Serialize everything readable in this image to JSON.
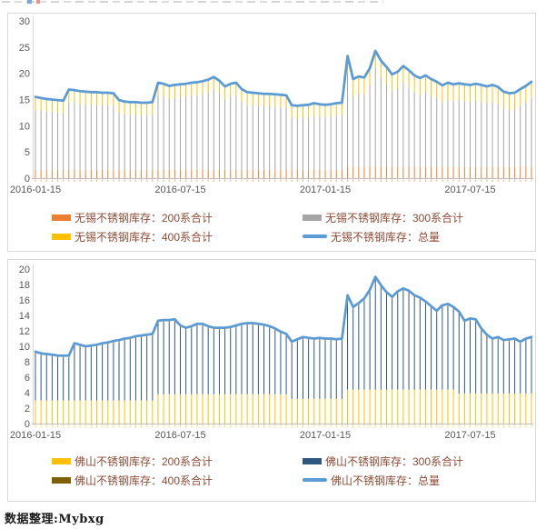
{
  "page": {
    "source_note": "数据整理:Mybxg"
  },
  "chart_data": [
    {
      "type": "combo-stacked-bar-line",
      "title": "",
      "region": "无锡",
      "ylim": [
        0,
        30
      ],
      "y_ticks": [
        0,
        5,
        10,
        15,
        20,
        25,
        30
      ],
      "x_ticks": [
        "2016-01-15",
        "2016-07-15",
        "2017-01-15",
        "2017-07-15"
      ],
      "x_tick_indices": [
        0,
        26,
        52,
        78
      ],
      "n_points": 90,
      "grid": false,
      "legend_position": "bottom",
      "colors": {
        "s200": "#ED7D31",
        "s300": "#A6A6A6",
        "s400": "#FFC000",
        "total": "#5B9BD5",
        "stub": "#F4B183",
        "axis": "#BFBFBF",
        "tick_text": "#595959"
      },
      "legend": [
        {
          "label": "无锡不锈钢库存：200系合计",
          "swatch": "bar",
          "color": "#ED7D31"
        },
        {
          "label": "无锡不锈钢库存：300系合计",
          "swatch": "bar",
          "color": "#A6A6A6"
        },
        {
          "label": "无锡不锈钢库存：400系合计",
          "swatch": "bar",
          "color": "#FFC000"
        },
        {
          "label": "无锡不锈钢库存：总量",
          "swatch": "line",
          "color": "#5B9BD5"
        }
      ],
      "series": {
        "s200": [
          1.6,
          1.6,
          1.6,
          1.6,
          1.6,
          1.6,
          1.6,
          1.6,
          1.6,
          1.6,
          1.6,
          1.6,
          1.6,
          1.6,
          1.6,
          1.6,
          1.6,
          1.6,
          1.6,
          1.6,
          1.6,
          1.6,
          1.6,
          1.6,
          1.6,
          1.6,
          1.6,
          1.6,
          1.6,
          1.6,
          1.6,
          1.6,
          1.6,
          1.6,
          1.6,
          1.6,
          1.6,
          1.6,
          1.6,
          1.6,
          1.6,
          1.6,
          1.6,
          1.6,
          1.6,
          1.6,
          1.6,
          1.6,
          1.6,
          1.6,
          1.6,
          1.6,
          1.6,
          1.6,
          1.6,
          1.6,
          2.2,
          2.2,
          2.2,
          2.2,
          2.2,
          2.2,
          2.2,
          2.2,
          2.2,
          2.2,
          2.2,
          2.2,
          2.2,
          2.2,
          2.2,
          2.2,
          2.2,
          2.2,
          2.2,
          2.2,
          2.2,
          2.2,
          2.2,
          2.2,
          2.2,
          2.2,
          2.2,
          2.2,
          2.2,
          2.2,
          2.2,
          2.2,
          2.2,
          2.2
        ],
        "s300": [
          11.5,
          11.3,
          11.1,
          11.0,
          10.9,
          10.8,
          12.9,
          12.8,
          12.6,
          12.5,
          12.4,
          12.4,
          12.3,
          12.3,
          12.2,
          10.9,
          10.6,
          10.5,
          10.5,
          10.4,
          10.4,
          10.5,
          14.2,
          14.0,
          13.6,
          13.8,
          13.9,
          14.0,
          14.2,
          14.3,
          14.5,
          14.8,
          15.3,
          14.6,
          13.5,
          14.0,
          14.2,
          13.0,
          12.4,
          12.3,
          12.2,
          12.1,
          12.1,
          12.0,
          11.9,
          11.8,
          9.9,
          9.8,
          9.9,
          10.0,
          10.3,
          10.1,
          10.0,
          10.1,
          10.3,
          10.4,
          17.9,
          13.5,
          14.0,
          13.8,
          15.6,
          18.9,
          17.0,
          15.8,
          14.4,
          14.9,
          16.0,
          15.2,
          14.2,
          13.7,
          14.2,
          13.5,
          13.0,
          12.3,
          12.8,
          12.5,
          12.7,
          12.5,
          12.4,
          12.6,
          12.4,
          12.1,
          12.4,
          12.0,
          11.1,
          10.8,
          10.9,
          11.6,
          12.2,
          13.0
        ],
        "s400": [
          2.4,
          2.4,
          2.4,
          2.4,
          2.4,
          2.4,
          2.4,
          2.4,
          2.4,
          2.4,
          2.4,
          2.4,
          2.4,
          2.4,
          2.4,
          2.4,
          2.4,
          2.4,
          2.4,
          2.4,
          2.4,
          2.4,
          2.4,
          2.4,
          2.4,
          2.4,
          2.4,
          2.4,
          2.4,
          2.4,
          2.4,
          2.4,
          2.4,
          2.4,
          2.4,
          2.4,
          2.4,
          2.4,
          2.4,
          2.4,
          2.4,
          2.4,
          2.4,
          2.4,
          2.4,
          2.4,
          2.4,
          2.4,
          2.4,
          2.4,
          2.4,
          2.4,
          2.4,
          2.4,
          2.4,
          2.4,
          3.2,
          3.2,
          3.2,
          3.2,
          3.2,
          3.2,
          3.2,
          3.2,
          3.2,
          3.2,
          3.2,
          3.2,
          3.2,
          3.2,
          3.2,
          3.2,
          3.2,
          3.2,
          3.2,
          3.2,
          3.2,
          3.2,
          3.2,
          3.2,
          3.2,
          3.2,
          3.2,
          3.2,
          3.2,
          3.2,
          3.2,
          3.2,
          3.2,
          3.2
        ],
        "total": [
          15.5,
          15.3,
          15.1,
          15.0,
          14.9,
          14.8,
          16.9,
          16.8,
          16.6,
          16.5,
          16.4,
          16.4,
          16.3,
          16.3,
          16.2,
          14.9,
          14.6,
          14.5,
          14.5,
          14.4,
          14.4,
          14.5,
          18.2,
          18.0,
          17.6,
          17.8,
          17.9,
          18.0,
          18.2,
          18.3,
          18.5,
          18.8,
          19.3,
          18.6,
          17.5,
          18.0,
          18.2,
          17.0,
          16.4,
          16.3,
          16.2,
          16.1,
          16.1,
          16.0,
          15.9,
          15.8,
          13.9,
          13.8,
          13.9,
          14.0,
          14.3,
          14.1,
          14.0,
          14.1,
          14.3,
          14.4,
          23.3,
          18.9,
          19.4,
          19.2,
          21.0,
          24.3,
          22.4,
          21.2,
          19.8,
          20.3,
          21.4,
          20.6,
          19.6,
          19.1,
          19.6,
          18.9,
          18.4,
          17.7,
          18.2,
          17.9,
          18.1,
          17.9,
          17.8,
          18.0,
          17.8,
          17.5,
          17.8,
          17.4,
          16.5,
          16.2,
          16.3,
          17.0,
          17.6,
          18.4
        ]
      }
    },
    {
      "type": "combo-stacked-bar-line",
      "title": "",
      "region": "佛山",
      "ylim": [
        0,
        20
      ],
      "y_ticks": [
        0,
        2,
        4,
        6,
        8,
        10,
        12,
        14,
        16,
        18,
        20
      ],
      "x_ticks": [
        "2016-01-15",
        "2016-07-15",
        "2017-01-15",
        "2017-07-15"
      ],
      "x_tick_indices": [
        0,
        26,
        52,
        78
      ],
      "n_points": 90,
      "grid": false,
      "legend_position": "bottom",
      "colors": {
        "s200": "#FFC000",
        "s300": "#2E5881",
        "s400": "#7F6000",
        "total": "#5B9BD5",
        "stub": "#FFD966",
        "axis": "#BFBFBF",
        "tick_text": "#595959"
      },
      "legend": [
        {
          "label": "佛山不锈钢库存：200系合计",
          "swatch": "bar",
          "color": "#FFC000"
        },
        {
          "label": "佛山不锈钢库存：300系合计",
          "swatch": "bar",
          "color": "#2E5881"
        },
        {
          "label": "佛山不锈钢库存：400系合计",
          "swatch": "bar",
          "color": "#7F6000"
        },
        {
          "label": "佛山不锈钢库存：总量",
          "swatch": "line",
          "color": "#5B9BD5"
        }
      ],
      "series": {
        "s200": [
          3.0,
          3.0,
          3.0,
          3.0,
          3.0,
          3.0,
          3.0,
          3.0,
          3.0,
          3.0,
          3.0,
          3.0,
          3.0,
          3.0,
          3.0,
          3.0,
          3.0,
          3.0,
          3.0,
          3.0,
          3.0,
          3.0,
          3.8,
          3.8,
          3.8,
          3.8,
          3.8,
          3.8,
          3.8,
          3.8,
          3.8,
          3.8,
          3.8,
          3.8,
          3.8,
          3.8,
          3.8,
          3.8,
          3.8,
          3.8,
          3.8,
          3.8,
          3.8,
          3.8,
          3.8,
          3.8,
          3.2,
          3.2,
          3.2,
          3.2,
          3.2,
          3.2,
          3.2,
          3.2,
          3.2,
          3.2,
          4.4,
          4.4,
          4.4,
          4.4,
          4.4,
          4.4,
          4.4,
          4.4,
          4.4,
          4.4,
          4.4,
          4.4,
          4.4,
          4.4,
          4.4,
          4.4,
          4.4,
          4.4,
          4.4,
          4.4,
          3.9,
          3.9,
          3.9,
          3.9,
          3.9,
          3.9,
          3.9,
          3.9,
          3.9,
          3.9,
          3.9,
          3.9,
          3.9,
          3.9
        ],
        "s300": [
          6.0,
          5.8,
          5.7,
          5.6,
          5.5,
          5.5,
          5.5,
          7.1,
          6.9,
          6.7,
          6.8,
          6.9,
          7.1,
          7.2,
          7.4,
          7.5,
          7.7,
          7.8,
          8.0,
          8.1,
          8.2,
          8.3,
          9.2,
          9.3,
          9.3,
          9.4,
          8.6,
          8.3,
          8.5,
          8.8,
          8.8,
          8.5,
          8.3,
          8.3,
          8.3,
          8.4,
          8.6,
          8.8,
          8.9,
          8.9,
          8.8,
          8.7,
          8.5,
          8.2,
          7.8,
          7.5,
          7.1,
          7.4,
          7.7,
          7.6,
          7.5,
          7.6,
          7.5,
          7.5,
          7.4,
          7.5,
          11.9,
          10.4,
          10.9,
          11.5,
          12.6,
          14.3,
          13.2,
          12.3,
          11.7,
          12.4,
          12.8,
          12.5,
          11.9,
          11.6,
          11.1,
          10.5,
          9.9,
          10.6,
          10.8,
          10.4,
          10.3,
          9.1,
          9.4,
          9.3,
          8.1,
          7.3,
          6.8,
          7.0,
          6.6,
          6.7,
          6.8,
          6.4,
          6.8,
          7.0
        ],
        "s400": [
          0.3,
          0.3,
          0.3,
          0.3,
          0.3,
          0.3,
          0.3,
          0.3,
          0.3,
          0.3,
          0.3,
          0.3,
          0.3,
          0.3,
          0.3,
          0.3,
          0.3,
          0.3,
          0.3,
          0.3,
          0.3,
          0.3,
          0.3,
          0.3,
          0.3,
          0.3,
          0.3,
          0.3,
          0.3,
          0.3,
          0.3,
          0.3,
          0.3,
          0.3,
          0.3,
          0.3,
          0.3,
          0.3,
          0.3,
          0.3,
          0.3,
          0.3,
          0.3,
          0.3,
          0.3,
          0.3,
          0.3,
          0.3,
          0.3,
          0.3,
          0.3,
          0.3,
          0.3,
          0.3,
          0.3,
          0.3,
          0.3,
          0.3,
          0.3,
          0.3,
          0.3,
          0.3,
          0.3,
          0.3,
          0.3,
          0.3,
          0.3,
          0.3,
          0.3,
          0.3,
          0.3,
          0.3,
          0.3,
          0.3,
          0.3,
          0.3,
          0.3,
          0.3,
          0.3,
          0.3,
          0.3,
          0.3,
          0.3,
          0.3,
          0.3,
          0.3,
          0.3,
          0.3,
          0.3,
          0.3
        ],
        "total": [
          9.3,
          9.1,
          9.0,
          8.9,
          8.8,
          8.8,
          8.8,
          10.4,
          10.2,
          10.0,
          10.1,
          10.2,
          10.4,
          10.5,
          10.7,
          10.8,
          11.0,
          11.1,
          11.3,
          11.4,
          11.5,
          11.6,
          13.3,
          13.4,
          13.4,
          13.5,
          12.7,
          12.4,
          12.6,
          12.9,
          12.9,
          12.6,
          12.4,
          12.4,
          12.4,
          12.5,
          12.7,
          12.9,
          13.0,
          13.0,
          12.9,
          12.8,
          12.6,
          12.3,
          11.9,
          11.6,
          10.6,
          10.9,
          11.2,
          11.1,
          11.0,
          11.1,
          11.0,
          11.0,
          10.9,
          11.0,
          16.6,
          15.1,
          15.6,
          16.2,
          17.3,
          19.0,
          17.9,
          17.0,
          16.4,
          17.1,
          17.5,
          17.2,
          16.6,
          16.3,
          15.8,
          15.2,
          14.6,
          15.3,
          15.5,
          15.1,
          14.5,
          13.3,
          13.6,
          13.5,
          12.3,
          11.5,
          11.0,
          11.2,
          10.8,
          10.9,
          11.0,
          10.6,
          11.0,
          11.2
        ]
      }
    }
  ]
}
